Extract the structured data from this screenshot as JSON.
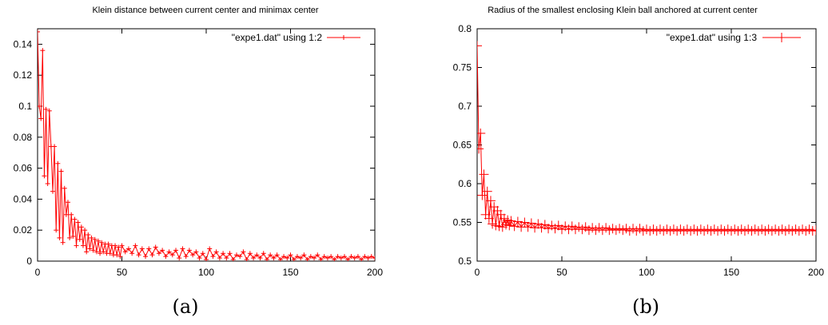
{
  "chart_data": [
    {
      "type": "line",
      "title": "Klein distance between current center and minimax center",
      "caption": "(a)",
      "xlabel": "",
      "ylabel": "",
      "xlim": [
        0,
        200
      ],
      "ylim": [
        0,
        0.15
      ],
      "xticks": [
        0,
        50,
        100,
        150,
        200
      ],
      "yticks": [
        0,
        0.02,
        0.04,
        0.06,
        0.08,
        0.1,
        0.12,
        0.14
      ],
      "ytick_labels": [
        "0",
        "0.02",
        "0.04",
        "0.06",
        "0.08",
        "0.1",
        "0.12",
        "0.14"
      ],
      "xtick_labels": [
        "0",
        "50",
        "100",
        "150",
        "200"
      ],
      "grid": false,
      "legend_position": "top-right",
      "series": [
        {
          "name": "\"expe1.dat\" using 1:2",
          "color": "#ff0000",
          "marker": "plus",
          "x": [
            0,
            1,
            2,
            3,
            4,
            5,
            6,
            7,
            8,
            9,
            10,
            11,
            12,
            13,
            14,
            15,
            16,
            17,
            18,
            19,
            20,
            21,
            22,
            23,
            24,
            25,
            26,
            27,
            28,
            29,
            30,
            31,
            32,
            33,
            34,
            35,
            36,
            37,
            38,
            39,
            40,
            41,
            42,
            43,
            44,
            45,
            46,
            47,
            48,
            49,
            50,
            52,
            54,
            56,
            58,
            60,
            62,
            64,
            66,
            68,
            70,
            72,
            74,
            76,
            78,
            80,
            82,
            84,
            86,
            88,
            90,
            92,
            94,
            96,
            98,
            100,
            102,
            104,
            106,
            108,
            110,
            112,
            114,
            116,
            118,
            120,
            122,
            124,
            126,
            128,
            130,
            132,
            134,
            136,
            138,
            140,
            142,
            144,
            146,
            148,
            150,
            152,
            154,
            156,
            158,
            160,
            162,
            164,
            166,
            168,
            170,
            172,
            174,
            176,
            178,
            180,
            182,
            184,
            186,
            188,
            190,
            192,
            194,
            196,
            198,
            200
          ],
          "y": [
            0.148,
            0.1,
            0.092,
            0.136,
            0.055,
            0.098,
            0.05,
            0.097,
            0.074,
            0.045,
            0.074,
            0.02,
            0.063,
            0.015,
            0.058,
            0.012,
            0.047,
            0.03,
            0.038,
            0.015,
            0.03,
            0.016,
            0.027,
            0.01,
            0.025,
            0.014,
            0.022,
            0.01,
            0.02,
            0.006,
            0.017,
            0.008,
            0.015,
            0.007,
            0.014,
            0.006,
            0.013,
            0.005,
            0.012,
            0.006,
            0.011,
            0.005,
            0.011,
            0.005,
            0.01,
            0.004,
            0.01,
            0.004,
            0.009,
            0.003,
            0.01,
            0.006,
            0.008,
            0.005,
            0.01,
            0.004,
            0.008,
            0.003,
            0.008,
            0.004,
            0.009,
            0.005,
            0.007,
            0.003,
            0.006,
            0.004,
            0.007,
            0.002,
            0.008,
            0.003,
            0.007,
            0.004,
            0.006,
            0.002,
            0.005,
            0.001,
            0.008,
            0.003,
            0.006,
            0.002,
            0.005,
            0.002,
            0.005,
            0.001,
            0.004,
            0.003,
            0.006,
            0.001,
            0.005,
            0.002,
            0.004,
            0.002,
            0.005,
            0.001,
            0.004,
            0.002,
            0.004,
            0.001,
            0.003,
            0.002,
            0.004,
            0.001,
            0.003,
            0.002,
            0.004,
            0.001,
            0.003,
            0.002,
            0.004,
            0.001,
            0.003,
            0.002,
            0.003,
            0.001,
            0.003,
            0.002,
            0.003,
            0.001,
            0.003,
            0.002,
            0.003,
            0.001,
            0.003,
            0.002,
            0.003,
            0.002
          ]
        }
      ]
    },
    {
      "type": "line",
      "title": "Radius of the smallest enclosing Klein ball anchored at current center",
      "caption": "(b)",
      "xlabel": "",
      "ylabel": "",
      "xlim": [
        0,
        200
      ],
      "ylim": [
        0.5,
        0.8
      ],
      "xticks": [
        0,
        50,
        100,
        150,
        200
      ],
      "yticks": [
        0.5,
        0.55,
        0.6,
        0.65,
        0.7,
        0.75,
        0.8
      ],
      "ytick_labels": [
        "0.5",
        "0.55",
        "0.6",
        "0.65",
        "0.7",
        "0.75",
        "0.8"
      ],
      "xtick_labels": [
        "0",
        "50",
        "100",
        "150",
        "200"
      ],
      "grid": false,
      "legend_position": "top-right",
      "series": [
        {
          "name": "\"expe1.dat\" using 1:3",
          "color": "#ff0000",
          "marker": "plus",
          "x": [
            0,
            1,
            2,
            3,
            4,
            5,
            6,
            7,
            8,
            9,
            10,
            11,
            12,
            13,
            14,
            15,
            16,
            17,
            18,
            19,
            20,
            22,
            24,
            26,
            28,
            30,
            32,
            34,
            36,
            38,
            40,
            42,
            44,
            46,
            48,
            50,
            52,
            54,
            56,
            58,
            60,
            62,
            64,
            66,
            68,
            70,
            72,
            74,
            76,
            78,
            80,
            82,
            84,
            86,
            88,
            90,
            92,
            94,
            96,
            98,
            100,
            102,
            104,
            106,
            108,
            110,
            112,
            114,
            116,
            118,
            120,
            122,
            124,
            126,
            128,
            130,
            132,
            134,
            136,
            138,
            140,
            142,
            144,
            146,
            148,
            150,
            152,
            154,
            156,
            158,
            160,
            162,
            164,
            166,
            168,
            170,
            172,
            174,
            176,
            178,
            180,
            182,
            184,
            186,
            188,
            190,
            192,
            194,
            196,
            198,
            200
          ],
          "y": [
            0.778,
            0.645,
            0.665,
            0.585,
            0.612,
            0.56,
            0.59,
            0.555,
            0.578,
            0.548,
            0.57,
            0.546,
            0.565,
            0.545,
            0.56,
            0.544,
            0.555,
            0.547,
            0.553,
            0.546,
            0.552,
            0.545,
            0.551,
            0.544,
            0.55,
            0.544,
            0.549,
            0.543,
            0.548,
            0.543,
            0.547,
            0.542,
            0.546,
            0.542,
            0.546,
            0.541,
            0.545,
            0.541,
            0.545,
            0.541,
            0.544,
            0.541,
            0.544,
            0.54,
            0.543,
            0.54,
            0.543,
            0.54,
            0.543,
            0.54,
            0.542,
            0.54,
            0.542,
            0.54,
            0.542,
            0.539,
            0.542,
            0.539,
            0.542,
            0.539,
            0.541,
            0.539,
            0.541,
            0.539,
            0.541,
            0.539,
            0.541,
            0.539,
            0.541,
            0.539,
            0.541,
            0.539,
            0.541,
            0.539,
            0.541,
            0.539,
            0.541,
            0.539,
            0.541,
            0.539,
            0.541,
            0.539,
            0.541,
            0.539,
            0.541,
            0.539,
            0.541,
            0.539,
            0.541,
            0.539,
            0.541,
            0.539,
            0.541,
            0.539,
            0.541,
            0.539,
            0.541,
            0.539,
            0.541,
            0.539,
            0.541,
            0.539,
            0.541,
            0.539,
            0.541,
            0.539,
            0.541,
            0.539,
            0.541,
            0.539,
            0.54
          ]
        }
      ]
    }
  ]
}
